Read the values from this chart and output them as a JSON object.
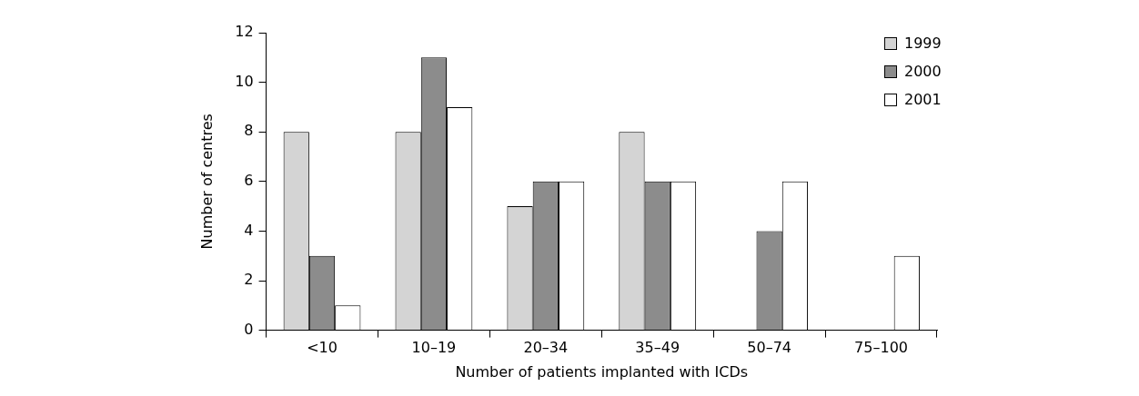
{
  "chart_data": {
    "type": "bar",
    "xlabel": "Number of patients implanted with ICDs",
    "ylabel": "Number of centres",
    "categories": [
      "<10",
      "10–19",
      "20–34",
      "35–49",
      "50–74",
      "75–100"
    ],
    "series": [
      {
        "name": "1999",
        "color": "#d4d4d4",
        "values": [
          8,
          8,
          5,
          8,
          0,
          0
        ]
      },
      {
        "name": "2000",
        "color": "#8c8c8c",
        "values": [
          3,
          11,
          6,
          6,
          4,
          0
        ]
      },
      {
        "name": "2001",
        "color": "#ffffff",
        "values": [
          1,
          9,
          6,
          6,
          6,
          3
        ]
      }
    ],
    "ylim": [
      0,
      12
    ],
    "yticks": [
      0,
      2,
      4,
      6,
      8,
      10,
      12
    ],
    "grid": false,
    "legend": "top right"
  }
}
